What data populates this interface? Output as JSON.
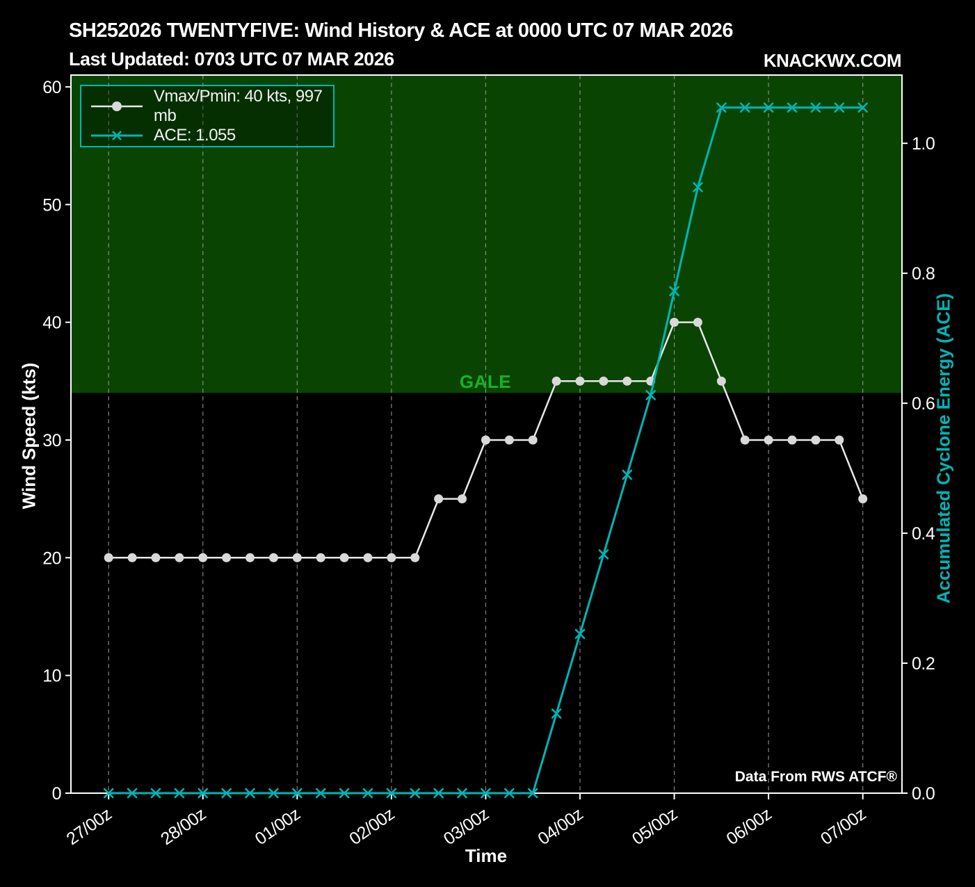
{
  "header": {
    "title": "SH252026 TWENTYFIVE: Wind History & ACE at 0000 UTC 07 MAR 2026",
    "subtitle": "Last Updated: 0703 UTC 07 MAR 2026",
    "brand": "KNACKWX.COM"
  },
  "chart_data": {
    "type": "line",
    "title": "SH252026 TWENTYFIVE: Wind History & ACE at 0000 UTC 07 MAR 2026",
    "xlabel": "Time",
    "ylabel_left": "Wind Speed (kts)",
    "ylabel_right": "Accumulated Cyclone Energy (ACE)",
    "x_interval_hours": 6,
    "x_tick_labels": [
      "27/00z",
      "28/00z",
      "01/00z",
      "02/00z",
      "03/00z",
      "04/00z",
      "05/00z",
      "06/00z",
      "07/00z"
    ],
    "x_tick_indices": [
      0,
      4,
      8,
      12,
      16,
      20,
      24,
      28,
      32
    ],
    "yticks_left": [
      0,
      10,
      20,
      30,
      40,
      50,
      60
    ],
    "yticks_right": [
      0.0,
      0.2,
      0.4,
      0.6,
      0.8,
      1.0
    ],
    "ylim_left": [
      0,
      61
    ],
    "ylim_right": [
      0,
      1.105
    ],
    "grid": "vertical-dashed",
    "legend_position": "upper left",
    "series": [
      {
        "name": "Vmax/Pmin: 40 kts, 997 mb",
        "axis": "left",
        "marker": "circle",
        "values": [
          20,
          20,
          20,
          20,
          20,
          20,
          20,
          20,
          20,
          20,
          20,
          20,
          20,
          20,
          25,
          25,
          30,
          30,
          30,
          35,
          35,
          35,
          35,
          35,
          40,
          40,
          35,
          30,
          30,
          30,
          30,
          30,
          25
        ]
      },
      {
        "name": "ACE: 1.055",
        "axis": "right",
        "marker": "x",
        "values": [
          0,
          0,
          0,
          0,
          0,
          0,
          0,
          0,
          0,
          0,
          0,
          0,
          0,
          0,
          0,
          0,
          0,
          0,
          0,
          0.1225,
          0.245,
          0.3675,
          0.49,
          0.6125,
          0.7725,
          0.9325,
          1.055,
          1.055,
          1.055,
          1.055,
          1.055,
          1.055,
          1.055
        ]
      }
    ],
    "gale_region": {
      "threshold_kts": 34,
      "label": "GALE"
    },
    "source": "Data From RWS ATCF®"
  },
  "colors": {
    "background": "#000000",
    "gale_fill": "#0a4403",
    "gale_text": "#17b423",
    "wind_line": "#e8e8e8",
    "wind_marker": "#d9d9d9",
    "ace_line": "#00b5b5",
    "grid_line": "#999999",
    "axis": "#ffffff",
    "legend_border": "#00b5b5"
  }
}
